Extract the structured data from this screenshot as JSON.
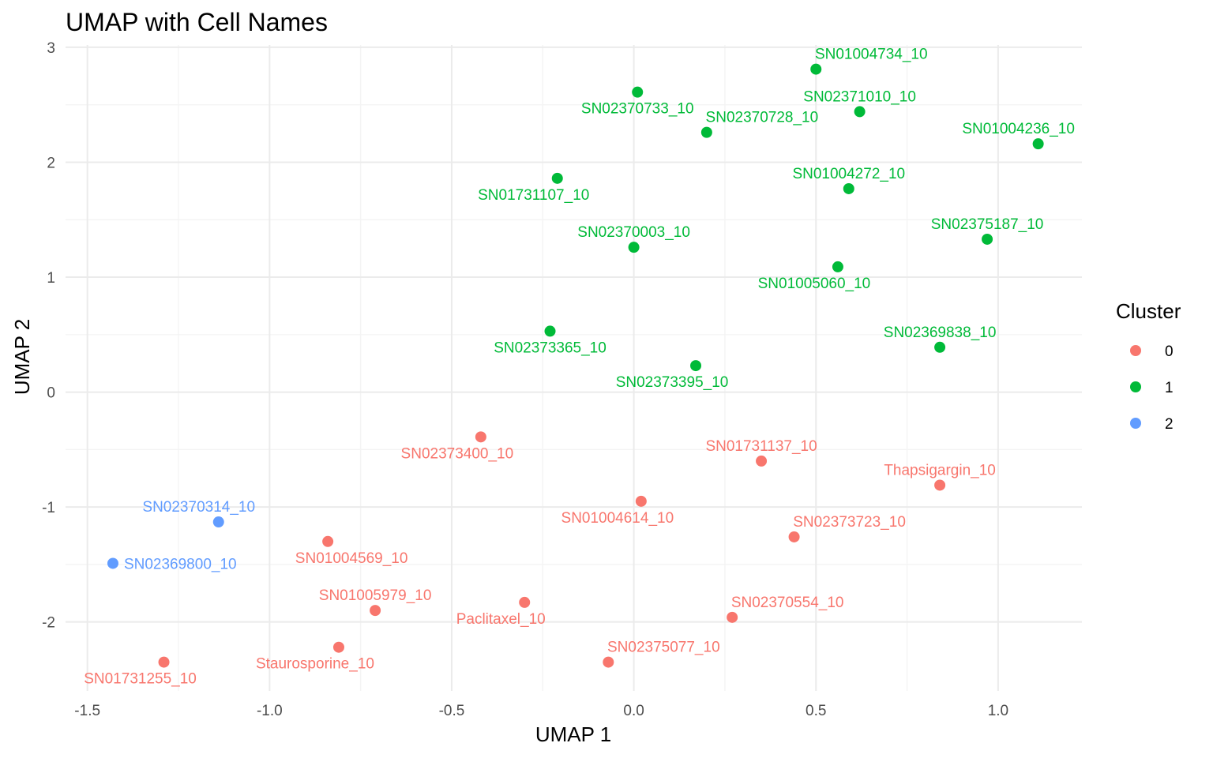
{
  "chart_data": {
    "type": "scatter",
    "title": "UMAP with Cell Names",
    "xlabel": "UMAP 1",
    "ylabel": "UMAP 2",
    "xlim": [
      -1.56,
      1.23
    ],
    "ylim": [
      -2.6,
      3.02
    ],
    "x_ticks": [
      -1.5,
      -1.0,
      -0.5,
      0.0,
      0.5,
      1.0
    ],
    "x_tick_labels": [
      "-1.5",
      "-1.0",
      "-0.5",
      "0.0",
      "0.5",
      "1.0"
    ],
    "y_ticks": [
      -2,
      -1,
      0,
      1,
      2,
      3
    ],
    "y_tick_labels": [
      "-2",
      "-1",
      "0",
      "1",
      "2",
      "3"
    ],
    "grid": true,
    "legend": {
      "title": "Cluster",
      "placement": "right",
      "entries": [
        {
          "label": "0",
          "color": "#F8766D"
        },
        {
          "label": "1",
          "color": "#00BA38"
        },
        {
          "label": "2",
          "color": "#619CFF"
        }
      ]
    },
    "points": [
      {
        "name": "SN01004734_10",
        "x": 0.5,
        "y": 2.81,
        "cluster": "1",
        "label_pos": "above-right"
      },
      {
        "name": "SN02370733_10",
        "x": 0.01,
        "y": 2.61,
        "cluster": "1",
        "label_pos": "below"
      },
      {
        "name": "SN02371010_10",
        "x": 0.62,
        "y": 2.44,
        "cluster": "1",
        "label_pos": "above"
      },
      {
        "name": "SN02370728_10",
        "x": 0.2,
        "y": 2.26,
        "cluster": "1",
        "label_pos": "above-right"
      },
      {
        "name": "SN01004236_10",
        "x": 1.11,
        "y": 2.16,
        "cluster": "1",
        "label_pos": "above-left"
      },
      {
        "name": "SN01731107_10",
        "x": -0.21,
        "y": 1.86,
        "cluster": "1",
        "label_pos": "below-left"
      },
      {
        "name": "SN01004272_10",
        "x": 0.59,
        "y": 1.77,
        "cluster": "1",
        "label_pos": "above"
      },
      {
        "name": "SN02375187_10",
        "x": 0.97,
        "y": 1.33,
        "cluster": "1",
        "label_pos": "above"
      },
      {
        "name": "SN02370003_10",
        "x": 0.0,
        "y": 1.26,
        "cluster": "1",
        "label_pos": "above"
      },
      {
        "name": "SN01005060_10",
        "x": 0.56,
        "y": 1.09,
        "cluster": "1",
        "label_pos": "below-left"
      },
      {
        "name": "SN02373365_10",
        "x": -0.23,
        "y": 0.53,
        "cluster": "1",
        "label_pos": "below"
      },
      {
        "name": "SN02369838_10",
        "x": 0.84,
        "y": 0.39,
        "cluster": "1",
        "label_pos": "above"
      },
      {
        "name": "SN02373395_10",
        "x": 0.17,
        "y": 0.23,
        "cluster": "1",
        "label_pos": "below-left"
      },
      {
        "name": "SN02373400_10",
        "x": -0.42,
        "y": -0.39,
        "cluster": "0",
        "label_pos": "below-left"
      },
      {
        "name": "SN01731137_10",
        "x": 0.35,
        "y": -0.6,
        "cluster": "0",
        "label_pos": "above"
      },
      {
        "name": "Thapsigargin_10",
        "x": 0.84,
        "y": -0.81,
        "cluster": "0",
        "label_pos": "above"
      },
      {
        "name": "SN01004614_10",
        "x": 0.02,
        "y": -0.95,
        "cluster": "0",
        "label_pos": "below-left"
      },
      {
        "name": "SN02370314_10",
        "x": -1.14,
        "y": -1.13,
        "cluster": "2",
        "label_pos": "above-left"
      },
      {
        "name": "SN02373723_10",
        "x": 0.44,
        "y": -1.26,
        "cluster": "0",
        "label_pos": "above-right"
      },
      {
        "name": "SN01004569_10",
        "x": -0.84,
        "y": -1.3,
        "cluster": "0",
        "label_pos": "below-right"
      },
      {
        "name": "SN02369800_10",
        "x": -1.43,
        "y": -1.49,
        "cluster": "2",
        "label_pos": "right"
      },
      {
        "name": "Paclitaxel_10",
        "x": -0.3,
        "y": -1.83,
        "cluster": "0",
        "label_pos": "below-left"
      },
      {
        "name": "SN01005979_10",
        "x": -0.71,
        "y": -1.9,
        "cluster": "0",
        "label_pos": "above"
      },
      {
        "name": "SN02370554_10",
        "x": 0.27,
        "y": -1.96,
        "cluster": "0",
        "label_pos": "above-right"
      },
      {
        "name": "Staurosporine_10",
        "x": -0.81,
        "y": -2.22,
        "cluster": "0",
        "label_pos": "below-left"
      },
      {
        "name": "SN01731255_10",
        "x": -1.29,
        "y": -2.35,
        "cluster": "0",
        "label_pos": "below-left"
      },
      {
        "name": "SN02375077_10",
        "x": -0.07,
        "y": -2.35,
        "cluster": "0",
        "label_pos": "above-right"
      }
    ]
  }
}
